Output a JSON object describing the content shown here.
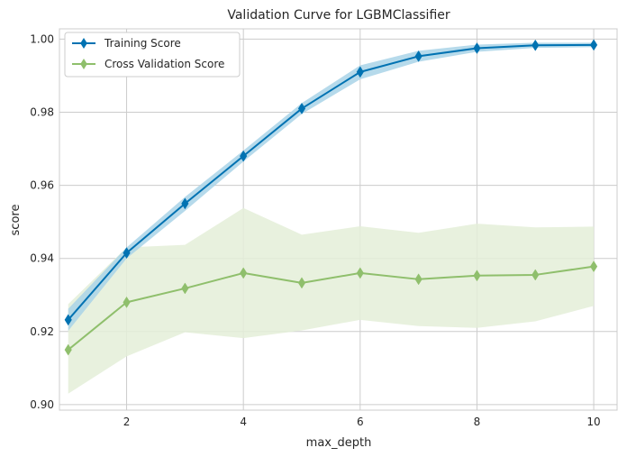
{
  "chart_data": {
    "type": "line",
    "title": "Validation Curve for LGBMClassifier",
    "xlabel": "max_depth",
    "ylabel": "score",
    "xlim": [
      0.85,
      10.4
    ],
    "ylim": [
      0.8985,
      1.0028
    ],
    "xticks": [
      2,
      4,
      6,
      8,
      10
    ],
    "yticks": [
      0.9,
      0.92,
      0.94,
      0.96,
      0.98,
      1.0
    ],
    "ytick_labels": [
      "0.90",
      "0.92",
      "0.94",
      "0.96",
      "0.98",
      "1.00"
    ],
    "grid": true,
    "legend_position": "top-left",
    "x": [
      1,
      2,
      3,
      4,
      5,
      6,
      7,
      8,
      9,
      10
    ],
    "series": [
      {
        "name": "Training Score",
        "color": "#0072b2",
        "band_color": "#a9d4e8",
        "marker": "diamond",
        "values": [
          0.9232,
          0.9415,
          0.955,
          0.968,
          0.981,
          0.991,
          0.9953,
          0.9975,
          0.9983,
          0.9984
        ],
        "band_upper": [
          0.9262,
          0.943,
          0.9568,
          0.9695,
          0.9825,
          0.9928,
          0.9968,
          0.9985,
          0.999,
          0.999
        ],
        "band_lower": [
          0.9202,
          0.94,
          0.953,
          0.9665,
          0.9795,
          0.989,
          0.9938,
          0.9965,
          0.9976,
          0.9978
        ]
      },
      {
        "name": "Cross Validation Score",
        "color": "#8fbf6c",
        "band_color": "#e4eed8",
        "marker": "diamond",
        "values": [
          0.915,
          0.928,
          0.9318,
          0.936,
          0.9333,
          0.936,
          0.9343,
          0.9353,
          0.9355,
          0.9378
        ],
        "band_upper": [
          0.9275,
          0.943,
          0.9437,
          0.9538,
          0.9465,
          0.9488,
          0.947,
          0.9495,
          0.9485,
          0.9487
        ],
        "band_lower": [
          0.903,
          0.9132,
          0.9198,
          0.9182,
          0.9203,
          0.9232,
          0.9215,
          0.921,
          0.9228,
          0.927
        ]
      }
    ]
  }
}
